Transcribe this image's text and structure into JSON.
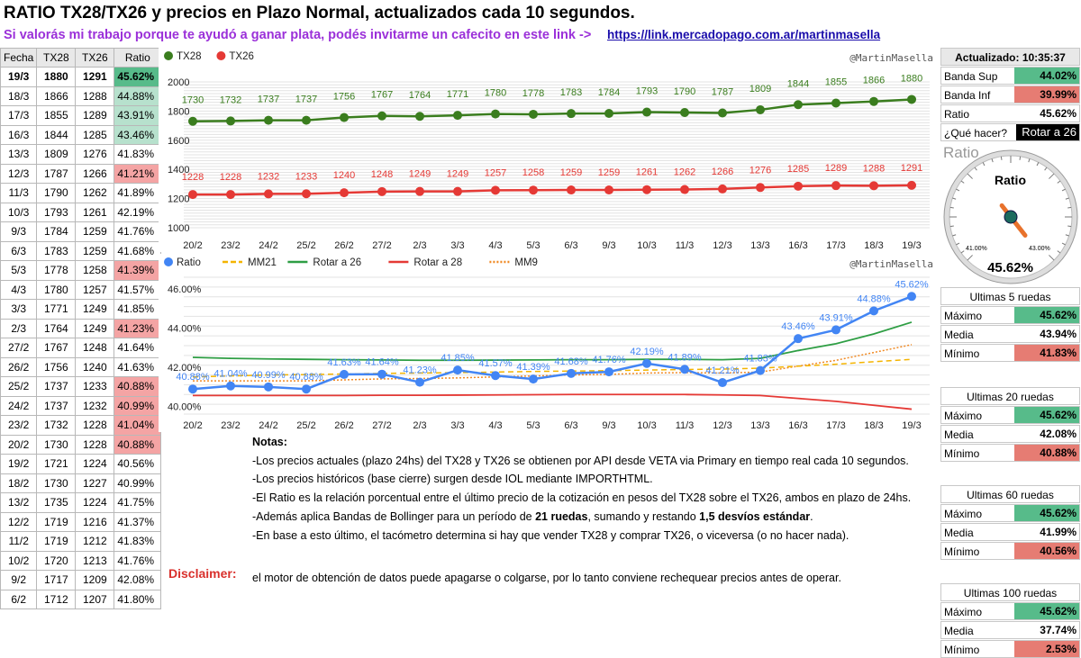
{
  "header": {
    "title": "RATIO TX28/TX26 y precios en Plazo Normal, actualizados cada 10 segundos.",
    "subtitle": "Si valorás mi trabajo porque te ayudó a ganar plata, podés invitarme un cafecito en este link ->",
    "link": "https://link.mercadopago.com.ar/martinmasella"
  },
  "table": {
    "headers": [
      "Fecha",
      "TX28",
      "TX26",
      "Ratio"
    ],
    "rows": [
      [
        "19/3",
        "1880",
        "1291",
        "45.62%"
      ],
      [
        "18/3",
        "1866",
        "1288",
        "44.88%"
      ],
      [
        "17/3",
        "1855",
        "1289",
        "43.91%"
      ],
      [
        "16/3",
        "1844",
        "1285",
        "43.46%"
      ],
      [
        "13/3",
        "1809",
        "1276",
        "41.83%"
      ],
      [
        "12/3",
        "1787",
        "1266",
        "41.21%"
      ],
      [
        "11/3",
        "1790",
        "1262",
        "41.89%"
      ],
      [
        "10/3",
        "1793",
        "1261",
        "42.19%"
      ],
      [
        "9/3",
        "1784",
        "1259",
        "41.76%"
      ],
      [
        "6/3",
        "1783",
        "1259",
        "41.68%"
      ],
      [
        "5/3",
        "1778",
        "1258",
        "41.39%"
      ],
      [
        "4/3",
        "1780",
        "1257",
        "41.57%"
      ],
      [
        "3/3",
        "1771",
        "1249",
        "41.85%"
      ],
      [
        "2/3",
        "1764",
        "1249",
        "41.23%"
      ],
      [
        "27/2",
        "1767",
        "1248",
        "41.64%"
      ],
      [
        "26/2",
        "1756",
        "1240",
        "41.63%"
      ],
      [
        "25/2",
        "1737",
        "1233",
        "40.88%"
      ],
      [
        "24/2",
        "1737",
        "1232",
        "40.99%"
      ],
      [
        "23/2",
        "1732",
        "1228",
        "41.04%"
      ],
      [
        "20/2",
        "1730",
        "1228",
        "40.88%"
      ],
      [
        "19/2",
        "1721",
        "1224",
        "40.56%"
      ],
      [
        "18/2",
        "1730",
        "1227",
        "40.99%"
      ],
      [
        "13/2",
        "1735",
        "1224",
        "41.75%"
      ],
      [
        "12/2",
        "1719",
        "1216",
        "41.37%"
      ],
      [
        "11/2",
        "1719",
        "1212",
        "41.83%"
      ],
      [
        "10/2",
        "1720",
        "1213",
        "41.76%"
      ],
      [
        "9/2",
        "1717",
        "1209",
        "42.08%"
      ],
      [
        "6/2",
        "1712",
        "1207",
        "41.80%"
      ]
    ],
    "highlight": [
      "hi",
      "mid",
      "mid",
      "mid",
      "",
      "lo",
      "",
      "",
      "",
      "",
      "lo",
      "",
      "",
      "lo",
      "",
      "",
      "lo",
      "lo",
      "lo",
      "lo",
      "",
      "",
      "",
      "",
      "",
      "",
      "",
      ""
    ]
  },
  "right_panel": {
    "updated_label": "Actualizado: 10:35:37",
    "banda_sup_label": "Banda Sup",
    "banda_sup": "44.02%",
    "banda_inf_label": "Banda Inf",
    "banda_inf": "39.99%",
    "ratio_label": "Ratio",
    "ratio": "45.62%",
    "que_hacer_label": "¿Qué hacer?",
    "que_hacer": "Rotar a 26",
    "gauge_title": "Ratio",
    "gauge_inner_title": "Ratio",
    "gauge_min": "41.00%",
    "gauge_max": "43.00%",
    "gauge_value": "45.62%",
    "gauge_needle_value": 45.62,
    "stats": [
      {
        "title": "Ultimas 5 ruedas",
        "max": "45.62%",
        "media": "43.94%",
        "min": "41.83%"
      },
      {
        "title": "Ultimas 20 ruedas",
        "max": "45.62%",
        "media": "42.08%",
        "min": "40.88%"
      },
      {
        "title": "Ultimas 60 ruedas",
        "max": "45.62%",
        "media": "41.99%",
        "min": "40.56%"
      },
      {
        "title": "Ultimas 100 ruedas",
        "max": "45.62%",
        "media": "37.74%",
        "min": "2.53%"
      }
    ],
    "labels": {
      "max": "Máximo",
      "media": "Media",
      "min": "Mínimo"
    }
  },
  "notes": {
    "heading": "Notas:",
    "lines": [
      "-Los precios actuales (plazo 24hs) del TX28 y TX26 se obtienen por API desde VETA via Primary en tiempo real cada 10 segundos.",
      "-Los precios históricos (base cierre) surgen desde IOL mediante IMPORTHTML.",
      "-El Ratio es la relación porcentual entre el último precio de la cotización en pesos del TX28 sobre el TX26, ambos en plazo de 24hs."
    ],
    "line4_pre": "-Además aplica Bandas de Bollinger para un período de ",
    "line4_b1": "21 ruedas",
    "line4_mid": ", sumando y restando ",
    "line4_b2": "1,5 desvíos estándar",
    "line4_post": ".",
    "line5": "-En base a esto último, el tacómetro determina si hay que vender TX28 y comprar TX26, o viceversa (o no hacer nada).",
    "disclaimer_label": "Disclaimer:",
    "disclaimer_text": "el motor de obtención de datos puede apagarse o colgarse, por lo tanto conviene rechequear precios antes de operar."
  },
  "chart_data": [
    {
      "type": "line",
      "watermark": "@MartinMasella",
      "categories": [
        "20/2",
        "23/2",
        "24/2",
        "25/2",
        "26/2",
        "27/2",
        "2/3",
        "3/3",
        "4/3",
        "5/3",
        "6/3",
        "9/3",
        "10/3",
        "11/3",
        "12/3",
        "13/3",
        "16/3",
        "17/3",
        "18/3",
        "19/3"
      ],
      "series": [
        {
          "name": "TX28",
          "color": "#3a7d1e",
          "values": [
            1730,
            1732,
            1737,
            1737,
            1756,
            1767,
            1764,
            1771,
            1780,
            1778,
            1783,
            1784,
            1793,
            1790,
            1787,
            1809,
            1844,
            1855,
            1866,
            1880
          ]
        },
        {
          "name": "TX26",
          "color": "#e53935",
          "values": [
            1228,
            1228,
            1232,
            1233,
            1240,
            1248,
            1249,
            1249,
            1257,
            1258,
            1259,
            1259,
            1261,
            1262,
            1266,
            1276,
            1285,
            1289,
            1288,
            1291
          ]
        }
      ],
      "yticks": [
        "1000",
        "1200",
        "1400",
        "1600",
        "1800",
        "2000"
      ],
      "ylim": [
        1000,
        2000
      ]
    },
    {
      "type": "line",
      "watermark": "@MartinMasella",
      "categories": [
        "20/2",
        "23/2",
        "24/2",
        "25/2",
        "26/2",
        "27/2",
        "2/3",
        "3/3",
        "4/3",
        "5/3",
        "6/3",
        "9/3",
        "10/3",
        "11/3",
        "12/3",
        "13/3",
        "16/3",
        "17/3",
        "18/3",
        "19/3"
      ],
      "series": [
        {
          "name": "Ratio",
          "color": "#4285f4",
          "values": [
            40.88,
            41.04,
            40.99,
            40.88,
            41.63,
            41.64,
            41.23,
            41.85,
            41.57,
            41.39,
            41.68,
            41.76,
            42.19,
            41.89,
            41.21,
            41.83,
            43.46,
            43.91,
            44.88,
            45.62
          ],
          "labels": [
            "40.88%",
            "41.04%",
            "40.99%",
            "40.88%",
            "41.63%",
            "41.64%",
            "41.23%",
            "41.85%",
            "41.57%",
            "41.39%",
            "41.68%",
            "41.76%",
            "42.19%",
            "41.89%",
            "41.21%",
            "41.83%",
            "43.46%",
            "43.91%",
            "44.88%",
            "45.62%"
          ]
        },
        {
          "name": "MM21",
          "color": "#f4b400",
          "values": [
            41.5,
            41.55,
            41.6,
            41.62,
            41.65,
            41.68,
            41.7,
            41.72,
            41.75,
            41.78,
            41.8,
            41.82,
            41.85,
            41.88,
            41.9,
            41.95,
            42.05,
            42.15,
            42.28,
            42.4
          ]
        },
        {
          "name": "Rotar a 26",
          "color": "#2e9e44",
          "values": [
            42.5,
            42.45,
            42.42,
            42.4,
            42.38,
            42.37,
            42.35,
            42.35,
            42.36,
            42.37,
            42.38,
            42.38,
            42.4,
            42.4,
            42.38,
            42.45,
            42.85,
            43.2,
            43.7,
            44.3
          ]
        },
        {
          "name": "Rotar a 28",
          "color": "#e53935",
          "values": [
            40.55,
            40.55,
            40.55,
            40.55,
            40.55,
            40.56,
            40.56,
            40.57,
            40.58,
            40.59,
            40.6,
            40.6,
            40.6,
            40.6,
            40.58,
            40.55,
            40.4,
            40.25,
            40.05,
            39.85
          ]
        },
        {
          "name": "MM9",
          "color": "#f08a24",
          "values": [
            41.3,
            41.3,
            41.3,
            41.3,
            41.35,
            41.4,
            41.42,
            41.45,
            41.5,
            41.55,
            41.6,
            41.63,
            41.7,
            41.72,
            41.7,
            41.75,
            42.05,
            42.35,
            42.75,
            43.15
          ]
        }
      ],
      "yticks": [
        "40.00%",
        "42.00%",
        "44.00%",
        "46.00%"
      ],
      "ylim": [
        39.6,
        46.6
      ]
    }
  ]
}
